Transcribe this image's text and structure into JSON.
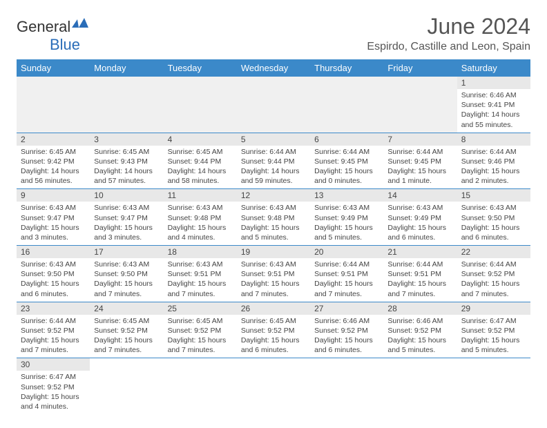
{
  "logo": {
    "text_general": "General",
    "text_blue": "Blue"
  },
  "header": {
    "month_title": "June 2024",
    "location": "Espirdo, Castille and Leon, Spain"
  },
  "colors": {
    "header_bg": "#3b89c9",
    "header_text": "#ffffff",
    "daynum_bg": "#e8e8e8",
    "border": "#3b89c9",
    "text": "#444444",
    "title_text": "#555555"
  },
  "dayHeaders": [
    "Sunday",
    "Monday",
    "Tuesday",
    "Wednesday",
    "Thursday",
    "Friday",
    "Saturday"
  ],
  "days": {
    "1": {
      "sunrise": "6:46 AM",
      "sunset": "9:41 PM",
      "daylight": "14 hours and 55 minutes."
    },
    "2": {
      "sunrise": "6:45 AM",
      "sunset": "9:42 PM",
      "daylight": "14 hours and 56 minutes."
    },
    "3": {
      "sunrise": "6:45 AM",
      "sunset": "9:43 PM",
      "daylight": "14 hours and 57 minutes."
    },
    "4": {
      "sunrise": "6:45 AM",
      "sunset": "9:44 PM",
      "daylight": "14 hours and 58 minutes."
    },
    "5": {
      "sunrise": "6:44 AM",
      "sunset": "9:44 PM",
      "daylight": "14 hours and 59 minutes."
    },
    "6": {
      "sunrise": "6:44 AM",
      "sunset": "9:45 PM",
      "daylight": "15 hours and 0 minutes."
    },
    "7": {
      "sunrise": "6:44 AM",
      "sunset": "9:45 PM",
      "daylight": "15 hours and 1 minute."
    },
    "8": {
      "sunrise": "6:44 AM",
      "sunset": "9:46 PM",
      "daylight": "15 hours and 2 minutes."
    },
    "9": {
      "sunrise": "6:43 AM",
      "sunset": "9:47 PM",
      "daylight": "15 hours and 3 minutes."
    },
    "10": {
      "sunrise": "6:43 AM",
      "sunset": "9:47 PM",
      "daylight": "15 hours and 3 minutes."
    },
    "11": {
      "sunrise": "6:43 AM",
      "sunset": "9:48 PM",
      "daylight": "15 hours and 4 minutes."
    },
    "12": {
      "sunrise": "6:43 AM",
      "sunset": "9:48 PM",
      "daylight": "15 hours and 5 minutes."
    },
    "13": {
      "sunrise": "6:43 AM",
      "sunset": "9:49 PM",
      "daylight": "15 hours and 5 minutes."
    },
    "14": {
      "sunrise": "6:43 AM",
      "sunset": "9:49 PM",
      "daylight": "15 hours and 6 minutes."
    },
    "15": {
      "sunrise": "6:43 AM",
      "sunset": "9:50 PM",
      "daylight": "15 hours and 6 minutes."
    },
    "16": {
      "sunrise": "6:43 AM",
      "sunset": "9:50 PM",
      "daylight": "15 hours and 6 minutes."
    },
    "17": {
      "sunrise": "6:43 AM",
      "sunset": "9:50 PM",
      "daylight": "15 hours and 7 minutes."
    },
    "18": {
      "sunrise": "6:43 AM",
      "sunset": "9:51 PM",
      "daylight": "15 hours and 7 minutes."
    },
    "19": {
      "sunrise": "6:43 AM",
      "sunset": "9:51 PM",
      "daylight": "15 hours and 7 minutes."
    },
    "20": {
      "sunrise": "6:44 AM",
      "sunset": "9:51 PM",
      "daylight": "15 hours and 7 minutes."
    },
    "21": {
      "sunrise": "6:44 AM",
      "sunset": "9:51 PM",
      "daylight": "15 hours and 7 minutes."
    },
    "22": {
      "sunrise": "6:44 AM",
      "sunset": "9:52 PM",
      "daylight": "15 hours and 7 minutes."
    },
    "23": {
      "sunrise": "6:44 AM",
      "sunset": "9:52 PM",
      "daylight": "15 hours and 7 minutes."
    },
    "24": {
      "sunrise": "6:45 AM",
      "sunset": "9:52 PM",
      "daylight": "15 hours and 7 minutes."
    },
    "25": {
      "sunrise": "6:45 AM",
      "sunset": "9:52 PM",
      "daylight": "15 hours and 7 minutes."
    },
    "26": {
      "sunrise": "6:45 AM",
      "sunset": "9:52 PM",
      "daylight": "15 hours and 6 minutes."
    },
    "27": {
      "sunrise": "6:46 AM",
      "sunset": "9:52 PM",
      "daylight": "15 hours and 6 minutes."
    },
    "28": {
      "sunrise": "6:46 AM",
      "sunset": "9:52 PM",
      "daylight": "15 hours and 5 minutes."
    },
    "29": {
      "sunrise": "6:47 AM",
      "sunset": "9:52 PM",
      "daylight": "15 hours and 5 minutes."
    },
    "30": {
      "sunrise": "6:47 AM",
      "sunset": "9:52 PM",
      "daylight": "15 hours and 4 minutes."
    }
  },
  "labels": {
    "sunrise": "Sunrise: ",
    "sunset": "Sunset: ",
    "daylight": "Daylight: "
  },
  "layout": {
    "firstDayColumn": 6,
    "numDays": 30
  }
}
